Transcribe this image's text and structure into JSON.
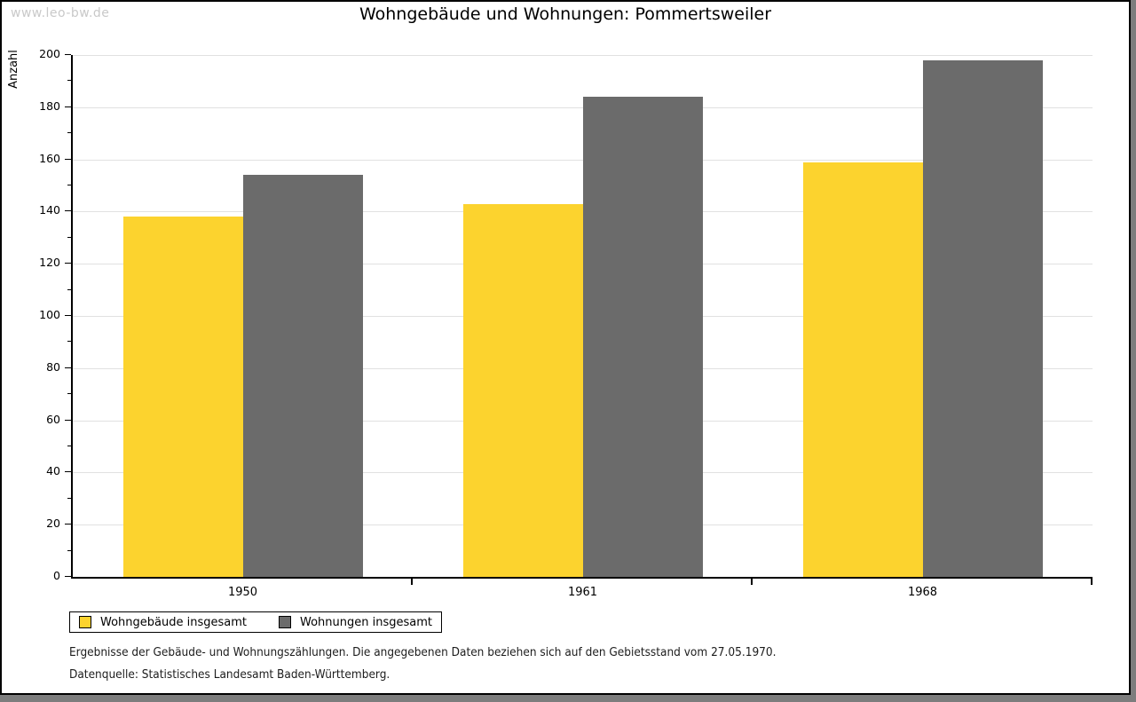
{
  "watermark": "www.leo-bw.de",
  "title": "Wohngebäude und Wohnungen: Pommertsweiler",
  "chart_data": {
    "type": "bar",
    "title": "Wohngebäude und Wohnungen: Pommertsweiler",
    "xlabel": "",
    "ylabel": "Anzahl",
    "categories": [
      "1950",
      "1961",
      "1968"
    ],
    "series": [
      {
        "name": "Wohngebäude insgesamt",
        "color": "#fcd32e",
        "values": [
          138,
          143,
          159
        ]
      },
      {
        "name": "Wohnungen insgesamt",
        "color": "#6b6b6b",
        "values": [
          154,
          184,
          198
        ]
      }
    ],
    "ylim": [
      0,
      200
    ],
    "ytick_major": 20,
    "ytick_minor": 10,
    "grid": true,
    "gridline_color": "#e1e1e1",
    "legend_position": "bottom-left"
  },
  "footer": {
    "line1": "Ergebnisse der Gebäude- und Wohnungszählungen. Die angegebenen Daten beziehen sich auf den Gebietsstand vom 27.05.1970.",
    "line2": "Datenquelle: Statistisches Landesamt Baden-Württemberg."
  },
  "colors": {
    "background_outer": "#7d7d7d",
    "page": "#ffffff",
    "axis": "#000000",
    "watermark": "#c9c9c9"
  }
}
